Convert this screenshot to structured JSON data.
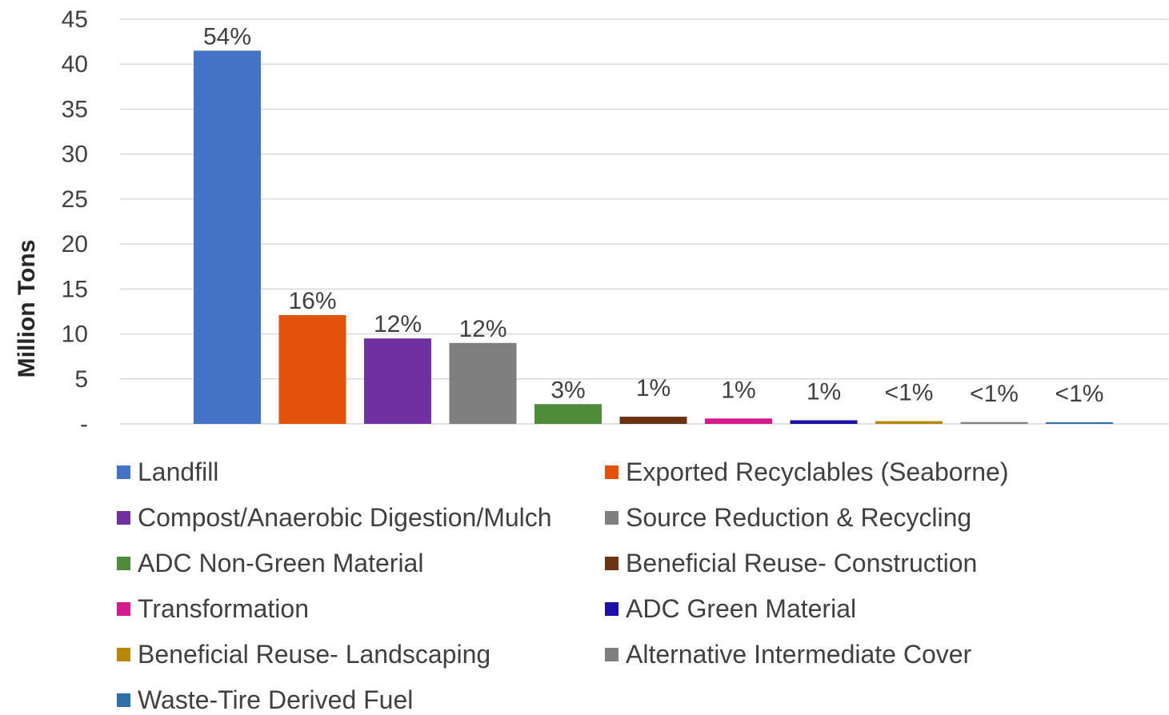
{
  "chart_data": {
    "type": "bar",
    "ylabel": "Million Tons",
    "ylim": [
      0,
      45
    ],
    "y_ticks": [
      {
        "value": 0,
        "label": "-"
      },
      {
        "value": 5,
        "label": "5"
      },
      {
        "value": 10,
        "label": "10"
      },
      {
        "value": 15,
        "label": "15"
      },
      {
        "value": 20,
        "label": "20"
      },
      {
        "value": 25,
        "label": "25"
      },
      {
        "value": 30,
        "label": "30"
      },
      {
        "value": 35,
        "label": "35"
      },
      {
        "value": 40,
        "label": "40"
      },
      {
        "value": 45,
        "label": "45"
      }
    ],
    "grid": true,
    "legend_position": "bottom",
    "categories": [
      "Landfill",
      "Exported Recyclables (Seaborne)",
      "Compost/Anaerobic Digestion/Mulch",
      "Source Reduction & Recycling",
      "ADC Non-Green Material",
      "Beneficial Reuse- Construction",
      "Transformation",
      "ADC Green Material",
      "Beneficial Reuse- Landscaping",
      "Alternative Intermediate Cover",
      "Waste-Tire Derived Fuel"
    ],
    "values": [
      41.5,
      12.1,
      9.5,
      9.0,
      2.2,
      0.8,
      0.6,
      0.4,
      0.3,
      0.2,
      0.15
    ],
    "data_labels": [
      "54%",
      "16%",
      "12%",
      "12%",
      "3%",
      "1%",
      "1%",
      "1%",
      "<1%",
      "<1%",
      "<1%"
    ],
    "colors": [
      "#4472C4",
      "#E2520B",
      "#7030A0",
      "#7F7F7F",
      "#4E8C3A",
      "#6B3414",
      "#D6198C",
      "#1C0FA8",
      "#B8860B",
      "#7F7F7F",
      "#2E6FA8"
    ]
  }
}
